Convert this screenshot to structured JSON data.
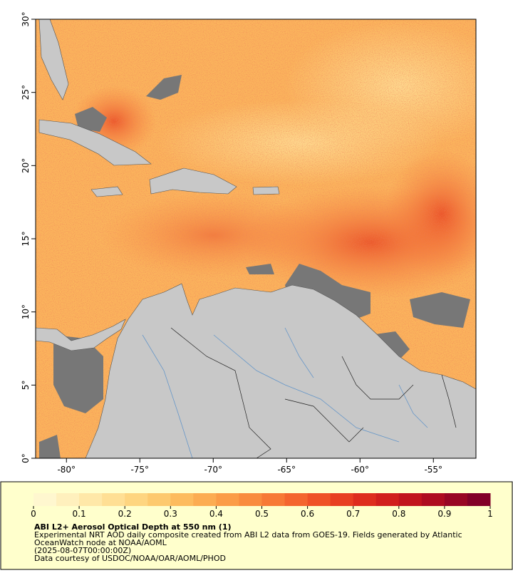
{
  "map": {
    "xlim": [
      -82.1,
      -52.1
    ],
    "ylim": [
      0,
      30
    ],
    "xticks": [
      {
        "value": -80,
        "label": "-80°"
      },
      {
        "value": -75,
        "label": "-75°"
      },
      {
        "value": -70,
        "label": "-70°"
      },
      {
        "value": -65,
        "label": "-65°"
      },
      {
        "value": -60,
        "label": "-60°"
      },
      {
        "value": -55,
        "label": "-55°"
      }
    ],
    "yticks": [
      {
        "value": 0,
        "label": "0°"
      },
      {
        "value": 5,
        "label": "5°"
      },
      {
        "value": 10,
        "label": "10°"
      },
      {
        "value": 15,
        "label": "15°"
      },
      {
        "value": 20,
        "label": "20°"
      },
      {
        "value": 25,
        "label": "25°"
      },
      {
        "value": 30,
        "label": "30°"
      }
    ]
  },
  "colorbar": {
    "lim": [
      0,
      1
    ],
    "ticks": [
      0,
      0.1,
      0.2,
      0.3,
      0.4,
      0.5,
      0.6,
      0.7,
      0.8,
      0.9,
      1
    ],
    "colors": [
      "#fff7cf",
      "#fff0bd",
      "#ffe8a8",
      "#ffdf94",
      "#fed580",
      "#fdc96e",
      "#fdbb5e",
      "#fcac52",
      "#fb9c47",
      "#f98b3e",
      "#f77936",
      "#f4652e",
      "#ef5127",
      "#e83f22",
      "#de2d1e",
      "#d11f1d",
      "#c1141e",
      "#ae0c20",
      "#980624",
      "#820028"
    ]
  },
  "caption": {
    "title": "ABI L2+ Aerosol Optical Depth at 550 nm (1)",
    "line1": "Experimental NRT AOD daily composite created from ABI L2 data from GOES-19. Fields generated by Atlantic",
    "line2": "OceanWatch node at NOAA/AOML",
    "line3": "(2025-08-07T00:00:00Z)",
    "line4": "Data courtesy of USDOC/NOAA/OAR/AOML/PHOD"
  }
}
